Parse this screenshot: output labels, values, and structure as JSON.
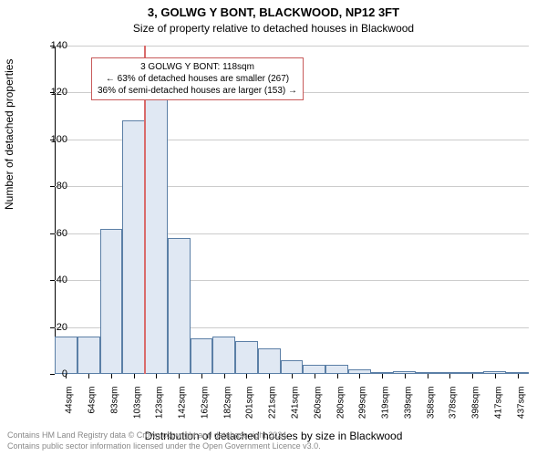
{
  "title_line1": "3, GOLWG Y BONT, BLACKWOOD, NP12 3FT",
  "title_line2": "Size of property relative to detached houses in Blackwood",
  "ylabel": "Number of detached properties",
  "xlabel": "Distribution of detached houses by size in Blackwood",
  "chart": {
    "type": "histogram",
    "ylim": [
      0,
      140
    ],
    "ytick_step": 20,
    "yticks": [
      0,
      20,
      40,
      60,
      80,
      100,
      120,
      140
    ],
    "xtick_labels": [
      "44sqm",
      "64sqm",
      "83sqm",
      "103sqm",
      "123sqm",
      "142sqm",
      "162sqm",
      "182sqm",
      "201sqm",
      "221sqm",
      "241sqm",
      "260sqm",
      "280sqm",
      "299sqm",
      "319sqm",
      "339sqm",
      "358sqm",
      "378sqm",
      "398sqm",
      "417sqm",
      "437sqm"
    ],
    "bar_fill": "#e0e8f3",
    "bar_border": "#5b7fa6",
    "grid_color": "#cccccc",
    "background_color": "#ffffff",
    "values": [
      16,
      16,
      62,
      108,
      117,
      58,
      15,
      16,
      14,
      11,
      6,
      4,
      4,
      2,
      0,
      1,
      0,
      0,
      0,
      1,
      0
    ],
    "marker_value_x": 118,
    "marker_color": "#d96b6b",
    "x_min": 44,
    "x_max": 437,
    "bar_count": 21
  },
  "annotation": {
    "line1": "3 GOLWG Y BONT: 118sqm",
    "line2": "← 63% of detached houses are smaller (267)",
    "line3": "36% of semi-detached houses are larger (153) →",
    "border_color": "#c85a5a",
    "background": "#ffffff",
    "fontsize": 10
  },
  "footer": {
    "line1": "Contains HM Land Registry data © Crown copyright and database right 2024.",
    "line2": "Contains public sector information licensed under the Open Government Licence v3.0.",
    "color": "#888888",
    "fontsize": 9
  }
}
